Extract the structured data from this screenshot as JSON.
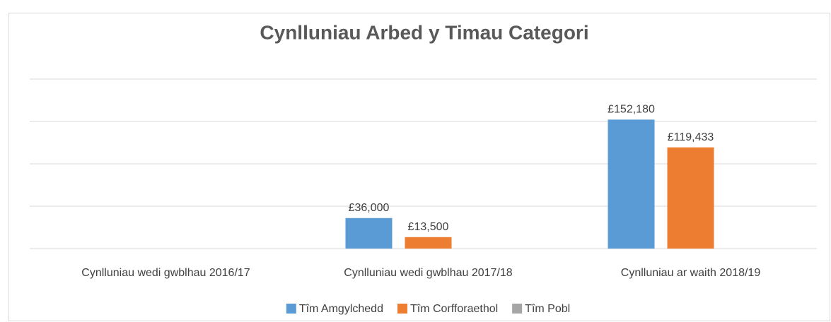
{
  "chart_data": {
    "type": "bar",
    "title": "Cynlluniau Arbed y Timau Categori",
    "categories": [
      "Cynlluniau wedi gwblhau 2016/17",
      "Cynlluniau wedi gwblhau 2017/18",
      "Cynlluniau ar waith 2018/19"
    ],
    "series": [
      {
        "name": "Tîm Amgylchedd",
        "color": "#5b9bd5",
        "values": [
          null,
          36000,
          152180
        ],
        "value_labels": [
          null,
          "£36,000",
          "£152,180"
        ]
      },
      {
        "name": "Tîm Corfforaethol",
        "color": "#ed7d31",
        "values": [
          null,
          13500,
          119433
        ],
        "value_labels": [
          null,
          "£13,500",
          "£119,433"
        ]
      },
      {
        "name": "Tîm Pobl",
        "color": "#a5a5a5",
        "values": [
          null,
          null,
          null
        ]
      }
    ],
    "ylim": [
      0,
      200000
    ],
    "yticks": [
      0,
      50000,
      100000,
      150000,
      200000
    ],
    "grid": true,
    "legend": "bottom"
  }
}
